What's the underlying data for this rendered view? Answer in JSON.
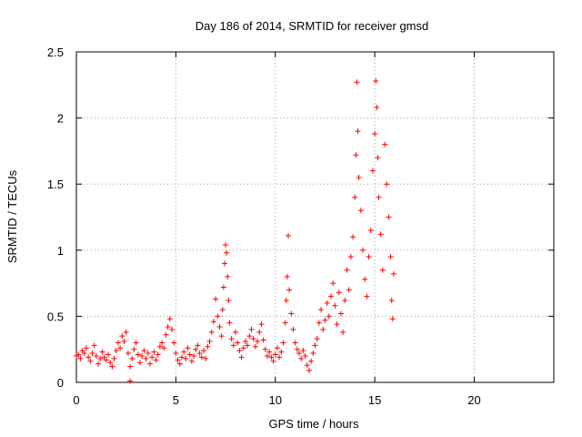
{
  "chart_data": {
    "type": "scatter",
    "title": "Day 186 of 2014, SRMTID for receiver gmsd",
    "xlabel": "GPS time / hours",
    "ylabel": "SRMTID / TECUs",
    "xlim": [
      0,
      24
    ],
    "ylim": [
      0,
      2.5
    ],
    "x_ticks": [
      0,
      5,
      10,
      15,
      20
    ],
    "x_tick_labels": [
      "0",
      "5",
      "10",
      "15",
      "20"
    ],
    "y_ticks": [
      0,
      0.5,
      1,
      1.5,
      2,
      2.5
    ],
    "y_tick_labels": [
      "0",
      "0.5",
      "1",
      "1.5",
      "2",
      "2.5"
    ],
    "grid": true,
    "marker": "+",
    "series": [
      {
        "name": "SRMTID",
        "color": "#ff0000",
        "points": [
          [
            0.0,
            0.2
          ],
          [
            0.1,
            0.21
          ],
          [
            0.2,
            0.18
          ],
          [
            0.3,
            0.24
          ],
          [
            0.4,
            0.22
          ],
          [
            0.5,
            0.26
          ],
          [
            0.6,
            0.19
          ],
          [
            0.7,
            0.16
          ],
          [
            0.8,
            0.22
          ],
          [
            0.9,
            0.28
          ],
          [
            1.0,
            0.2
          ],
          [
            1.1,
            0.14
          ],
          [
            1.2,
            0.18
          ],
          [
            1.3,
            0.23
          ],
          [
            1.4,
            0.19
          ],
          [
            1.5,
            0.17
          ],
          [
            1.6,
            0.21
          ],
          [
            1.7,
            0.15
          ],
          [
            1.8,
            0.12
          ],
          [
            1.9,
            0.18
          ],
          [
            2.0,
            0.24
          ],
          [
            2.1,
            0.3
          ],
          [
            2.2,
            0.26
          ],
          [
            2.3,
            0.35
          ],
          [
            2.4,
            0.31
          ],
          [
            2.5,
            0.38
          ],
          [
            2.6,
            0.22
          ],
          [
            2.7,
            0.01
          ],
          [
            2.7,
            0.12
          ],
          [
            2.8,
            0.18
          ],
          [
            2.9,
            0.25
          ],
          [
            3.0,
            0.3
          ],
          [
            3.1,
            0.21
          ],
          [
            3.2,
            0.15
          ],
          [
            3.3,
            0.2
          ],
          [
            3.4,
            0.24
          ],
          [
            3.5,
            0.18
          ],
          [
            3.6,
            0.22
          ],
          [
            3.7,
            0.14
          ],
          [
            3.8,
            0.19
          ],
          [
            3.9,
            0.23
          ],
          [
            4.0,
            0.17
          ],
          [
            4.1,
            0.21
          ],
          [
            4.2,
            0.27
          ],
          [
            4.3,
            0.3
          ],
          [
            4.4,
            0.26
          ],
          [
            4.5,
            0.36
          ],
          [
            4.6,
            0.42
          ],
          [
            4.7,
            0.48
          ],
          [
            4.8,
            0.4
          ],
          [
            4.9,
            0.3
          ],
          [
            5.0,
            0.22
          ],
          [
            5.1,
            0.17
          ],
          [
            5.2,
            0.14
          ],
          [
            5.3,
            0.19
          ],
          [
            5.4,
            0.23
          ],
          [
            5.5,
            0.18
          ],
          [
            5.6,
            0.26
          ],
          [
            5.7,
            0.21
          ],
          [
            5.8,
            0.16
          ],
          [
            5.9,
            0.2
          ],
          [
            6.0,
            0.25
          ],
          [
            6.1,
            0.28
          ],
          [
            6.2,
            0.22
          ],
          [
            6.3,
            0.19
          ],
          [
            6.4,
            0.24
          ],
          [
            6.5,
            0.18
          ],
          [
            6.6,
            0.27
          ],
          [
            6.7,
            0.31
          ],
          [
            6.8,
            0.38
          ],
          [
            6.9,
            0.46
          ],
          [
            7.0,
            0.63
          ],
          [
            7.1,
            0.5
          ],
          [
            7.2,
            0.42
          ],
          [
            7.3,
            0.35
          ],
          [
            7.35,
            0.55
          ],
          [
            7.4,
            0.72
          ],
          [
            7.45,
            0.9
          ],
          [
            7.5,
            1.04
          ],
          [
            7.55,
            0.98
          ],
          [
            7.6,
            0.8
          ],
          [
            7.65,
            0.62
          ],
          [
            7.7,
            0.45
          ],
          [
            7.8,
            0.33
          ],
          [
            7.9,
            0.28
          ],
          [
            8.0,
            0.38
          ],
          [
            8.1,
            0.3
          ],
          [
            8.2,
            0.24
          ],
          [
            8.3,
            0.19
          ],
          [
            8.4,
            0.26
          ],
          [
            8.5,
            0.31
          ],
          [
            8.6,
            0.28
          ],
          [
            8.7,
            0.35
          ],
          [
            8.8,
            0.4
          ],
          [
            8.9,
            0.33
          ],
          [
            9.0,
            0.27
          ],
          [
            9.1,
            0.31
          ],
          [
            9.2,
            0.38
          ],
          [
            9.3,
            0.44
          ],
          [
            9.4,
            0.32
          ],
          [
            9.5,
            0.25
          ],
          [
            9.6,
            0.2
          ],
          [
            9.7,
            0.23
          ],
          [
            9.8,
            0.19
          ],
          [
            9.9,
            0.16
          ],
          [
            10.0,
            0.21
          ],
          [
            10.1,
            0.26
          ],
          [
            10.2,
            0.19
          ],
          [
            10.3,
            0.23
          ],
          [
            10.4,
            0.3
          ],
          [
            10.5,
            0.45
          ],
          [
            10.55,
            0.62
          ],
          [
            10.6,
            0.8
          ],
          [
            10.65,
            1.11
          ],
          [
            10.7,
            0.7
          ],
          [
            10.8,
            0.52
          ],
          [
            10.9,
            0.4
          ],
          [
            11.0,
            0.3
          ],
          [
            11.1,
            0.25
          ],
          [
            11.2,
            0.22
          ],
          [
            11.3,
            0.18
          ],
          [
            11.4,
            0.24
          ],
          [
            11.5,
            0.2
          ],
          [
            11.6,
            0.13
          ],
          [
            11.7,
            0.09
          ],
          [
            11.8,
            0.16
          ],
          [
            11.9,
            0.22
          ],
          [
            12.0,
            0.28
          ],
          [
            12.1,
            0.33
          ],
          [
            12.2,
            0.45
          ],
          [
            12.3,
            0.55
          ],
          [
            12.4,
            0.4
          ],
          [
            12.5,
            0.47
          ],
          [
            12.6,
            0.6
          ],
          [
            12.7,
            0.5
          ],
          [
            12.8,
            0.65
          ],
          [
            12.9,
            0.75
          ],
          [
            13.0,
            0.58
          ],
          [
            13.1,
            0.44
          ],
          [
            13.2,
            0.68
          ],
          [
            13.3,
            0.52
          ],
          [
            13.4,
            0.38
          ],
          [
            13.5,
            0.62
          ],
          [
            13.6,
            0.85
          ],
          [
            13.7,
            0.7
          ],
          [
            13.8,
            0.95
          ],
          [
            13.9,
            1.1
          ],
          [
            14.0,
            1.4
          ],
          [
            14.05,
            1.72
          ],
          [
            14.1,
            2.27
          ],
          [
            14.15,
            1.9
          ],
          [
            14.2,
            1.55
          ],
          [
            14.3,
            1.3
          ],
          [
            14.4,
            1.0
          ],
          [
            14.5,
            0.78
          ],
          [
            14.6,
            0.65
          ],
          [
            14.7,
            0.95
          ],
          [
            14.8,
            1.15
          ],
          [
            14.9,
            1.6
          ],
          [
            15.0,
            1.88
          ],
          [
            15.05,
            2.28
          ],
          [
            15.1,
            2.08
          ],
          [
            15.15,
            1.7
          ],
          [
            15.2,
            1.4
          ],
          [
            15.3,
            1.12
          ],
          [
            15.4,
            0.85
          ],
          [
            15.5,
            1.8
          ],
          [
            15.6,
            1.5
          ],
          [
            15.7,
            1.25
          ],
          [
            15.8,
            0.95
          ],
          [
            15.85,
            0.62
          ],
          [
            15.9,
            0.48
          ],
          [
            15.95,
            0.82
          ]
        ]
      }
    ]
  }
}
